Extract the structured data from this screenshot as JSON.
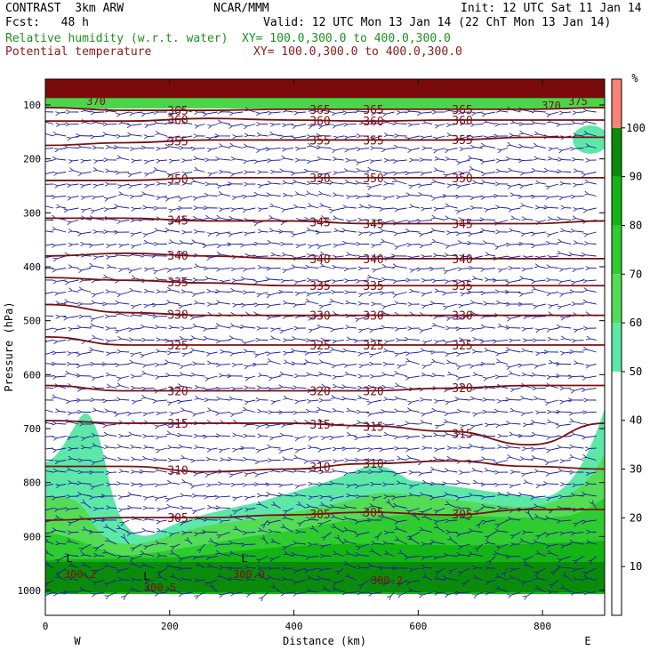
{
  "header": {
    "model": "CONTRAST  3km ARW",
    "center": "NCAR/MMM",
    "init": "Init: 12 UTC Sat 11 Jan 14",
    "fcst": "Fcst:   48 h",
    "valid": "Valid: 12 UTC Mon 13 Jan 14 (22 ChT Mon 13 Jan 14)",
    "field1": "Relative humidity (w.r.t. water)",
    "field1_xy": "XY= 100.0,300.0 to 400.0,300.0",
    "field2": "Potential temperature",
    "field2_xy": "XY= 100.0,300.0 to 400.0,300.0",
    "field1_color": "#1f8f1f",
    "field2_color": "#8b1a1a"
  },
  "chart_data": {
    "type": "cross-section",
    "xlabel": "Distance (km)",
    "ylabel": "Pressure (hPa)",
    "xlim": [
      0,
      900
    ],
    "ylim_hpa": [
      1050,
      50
    ],
    "x_ticks": [
      "0",
      "200",
      "400",
      "600",
      "800"
    ],
    "y_ticks": [
      "100",
      "200",
      "300",
      "400",
      "500",
      "600",
      "700",
      "800",
      "900",
      "1000"
    ],
    "x_ends": {
      "left": "W",
      "right": "E"
    },
    "colorbar": {
      "unit": "%",
      "labels": [
        "10",
        "20",
        "30",
        "40",
        "50",
        "60",
        "70",
        "80",
        "90",
        "100"
      ],
      "levels": [
        0,
        50,
        60,
        70,
        80,
        90,
        100,
        110
      ],
      "colors": [
        "#ffffff",
        "#5de8a8",
        "#54dc54",
        "#2ecc2e",
        "#14b414",
        "#0a8c0a",
        "#fa8278"
      ]
    },
    "theta_contours": [
      {
        "value": 310,
        "y_hpa": [
          770,
          770,
          780,
          775,
          765,
          760,
          770,
          775
        ],
        "labels": [
          "310",
          "310",
          "310"
        ]
      },
      {
        "value": 305,
        "y_hpa": [
          870,
          865,
          865,
          860,
          855,
          860,
          850,
          850
        ],
        "labels": [
          "305",
          "305",
          "305",
          "305"
        ]
      },
      {
        "value": 315,
        "y_hpa": [
          685,
          690,
          690,
          690,
          695,
          705,
          730,
          690
        ],
        "labels": [
          "315",
          "315",
          "315",
          "315"
        ]
      },
      {
        "value": 320,
        "y_hpa": [
          620,
          630,
          630,
          630,
          630,
          625,
          620,
          620
        ],
        "labels": [
          "320",
          "320",
          "320",
          "320"
        ]
      },
      {
        "value": 325,
        "y_hpa": [
          530,
          545,
          545,
          545,
          545,
          545,
          545,
          545
        ],
        "labels": [
          "325",
          "325",
          "325",
          "325"
        ]
      },
      {
        "value": 330,
        "y_hpa": [
          470,
          485,
          490,
          490,
          490,
          490,
          490,
          490
        ],
        "labels": [
          "330",
          "330",
          "330",
          "330"
        ]
      },
      {
        "value": 335,
        "y_hpa": [
          420,
          425,
          430,
          435,
          435,
          435,
          435,
          435
        ],
        "labels": [
          "335",
          "335",
          "335",
          "335"
        ]
      },
      {
        "value": 340,
        "y_hpa": [
          380,
          375,
          380,
          385,
          385,
          385,
          385,
          385
        ],
        "labels": [
          "340",
          "340",
          "340",
          "340"
        ]
      },
      {
        "value": 345,
        "y_hpa": [
          310,
          310,
          315,
          315,
          320,
          320,
          320,
          315
        ],
        "labels": [
          "345",
          "345",
          "345",
          "345"
        ]
      },
      {
        "value": 350,
        "y_hpa": [
          240,
          240,
          235,
          235,
          235,
          235,
          235,
          235
        ],
        "labels": [
          "350",
          "350",
          "350",
          "350"
        ]
      },
      {
        "value": 355,
        "y_hpa": [
          175,
          170,
          165,
          165,
          165,
          165,
          160,
          160
        ],
        "labels": [
          "355",
          "355",
          "355",
          "355"
        ]
      },
      {
        "value": 360,
        "y_hpa": [
          130,
          130,
          125,
          128,
          130,
          128,
          128,
          128
        ],
        "labels": [
          "360",
          "360",
          "360",
          "360"
        ]
      },
      {
        "value": 365,
        "y_hpa": [
          105,
          110,
          110,
          108,
          108,
          108,
          108,
          105
        ],
        "labels": [
          "365",
          "365",
          "365",
          "365"
        ]
      }
    ],
    "contour_x_km": [
      0,
      130,
      260,
      390,
      520,
      650,
      780,
      900
    ],
    "theta_labels_extra": [
      "370",
      "370",
      "375",
      "300.2",
      "300.5",
      "300.9",
      "300.2"
    ],
    "surface_marks": [
      "L",
      "L",
      "L"
    ]
  }
}
